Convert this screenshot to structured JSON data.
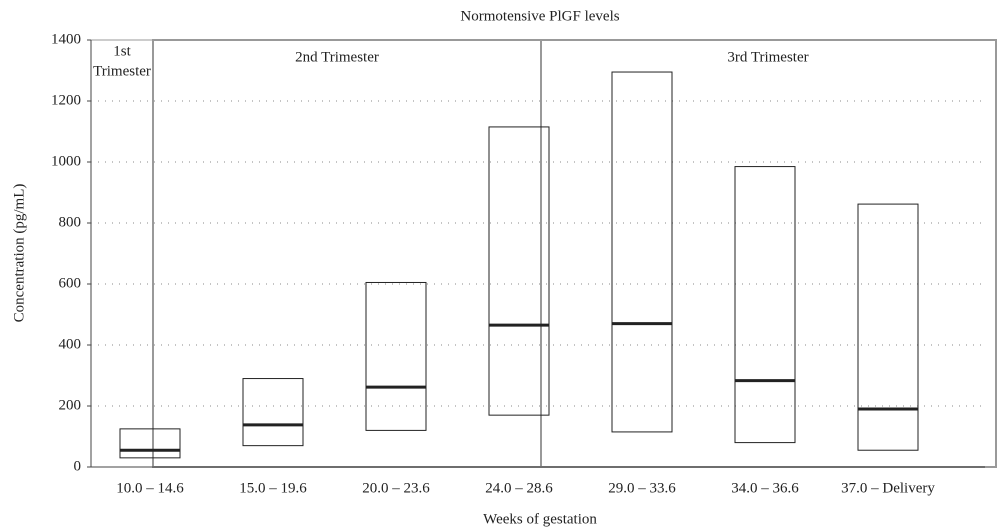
{
  "chart_data": {
    "type": "range-bar",
    "title": "Normotensive PlGF levels",
    "x_label": "Weeks of gestation",
    "y_label": "Concentration (pg/mL)",
    "categories": [
      "10.0 – 14.6",
      "15.0 – 19.6",
      "20.0 – 23.6",
      "24.0 – 28.6",
      "29.0 – 33.6",
      "34.0 – 36.6",
      "37.0 – Delivery"
    ],
    "low": [
      30,
      70,
      120,
      170,
      115,
      80,
      55
    ],
    "high": [
      125,
      290,
      605,
      1115,
      1295,
      985,
      862
    ],
    "median": [
      55,
      138,
      262,
      465,
      470,
      283,
      190
    ],
    "ylim": [
      0,
      1400
    ],
    "yticks": [
      0,
      200,
      400,
      600,
      800,
      1000,
      1200,
      1400
    ],
    "grid": true,
    "annotations": [
      [
        "1st",
        "Trimester"
      ],
      [
        "2nd Trimester"
      ],
      [
        "3rd Trimester"
      ]
    ]
  }
}
